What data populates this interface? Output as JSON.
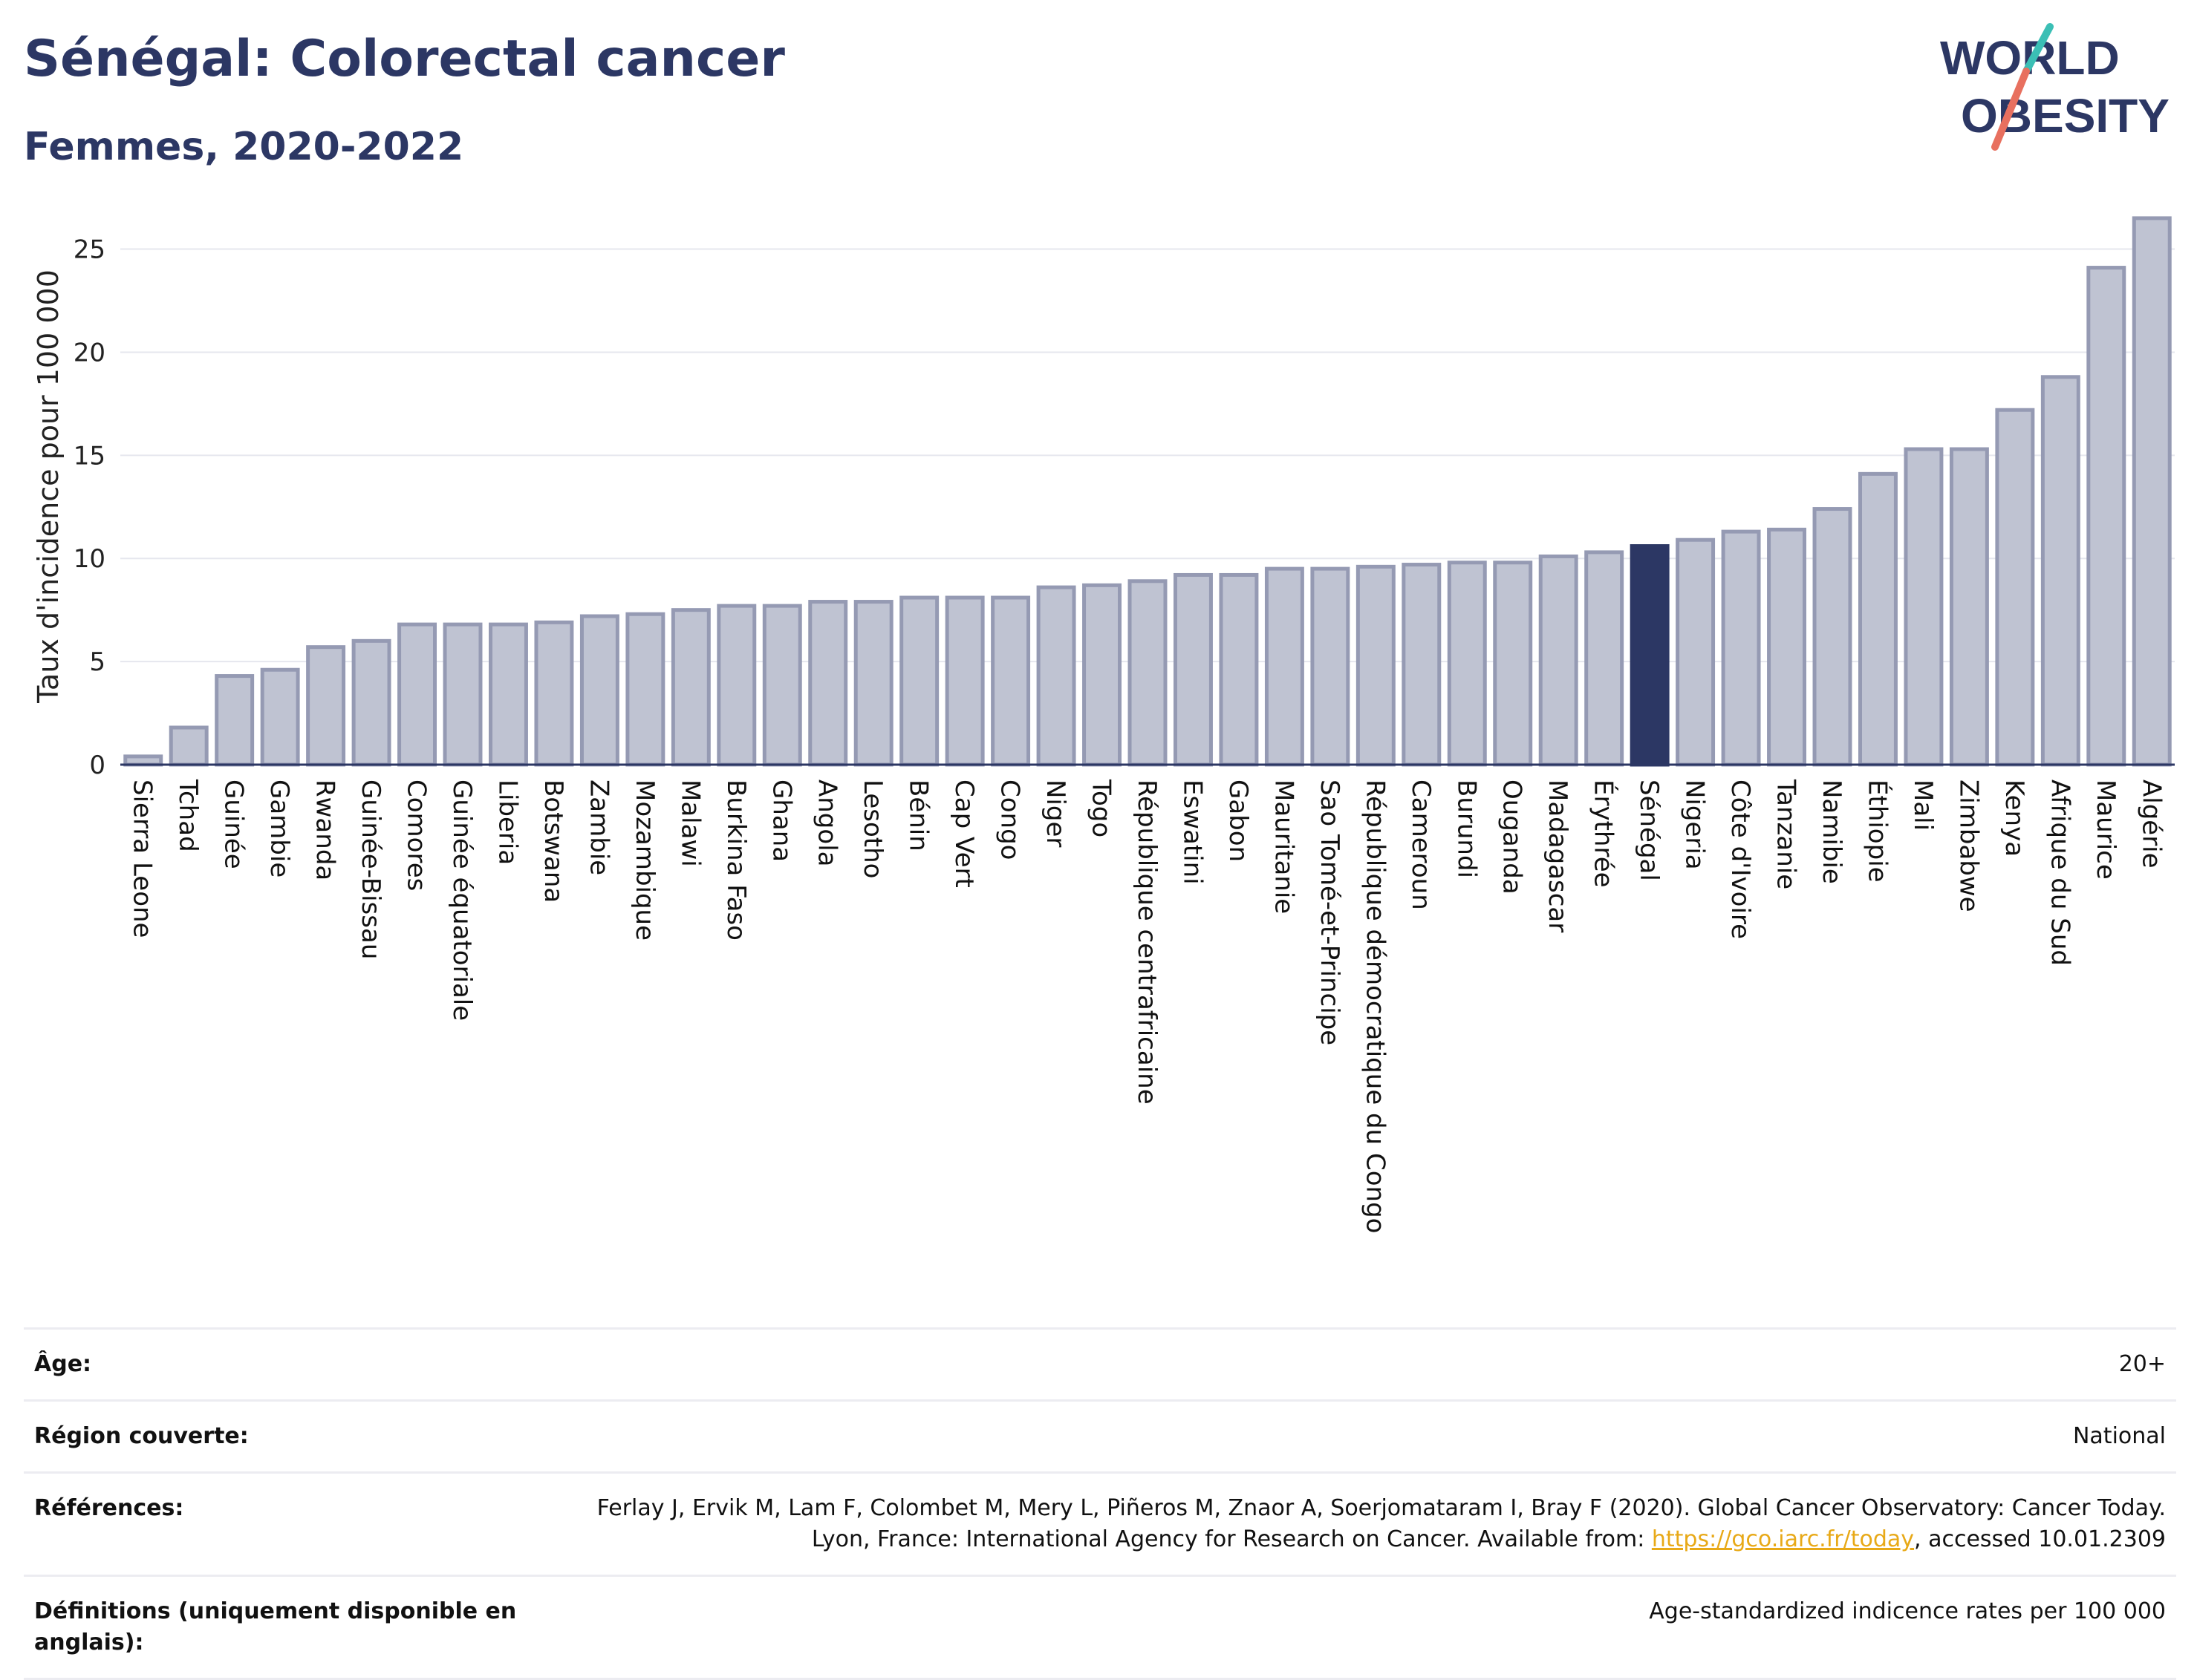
{
  "header": {
    "title": "Sénégal: Colorectal cancer",
    "subtitle": "Femmes, 2020-2022"
  },
  "logo": {
    "line1": "WORLD",
    "line2": "OBESITY"
  },
  "colors": {
    "bar": "#bfc3d2",
    "bar_border": "#959ab3",
    "highlight": "#2c3764",
    "title": "#2c3764"
  },
  "chart_data": {
    "type": "bar",
    "ylabel": "Taux d'incidence pour 100 000",
    "ylim": [
      0,
      27
    ],
    "yticks": [
      0,
      5,
      10,
      15,
      20,
      25
    ],
    "highlight": "Sénégal",
    "categories": [
      "Sierra Leone",
      "Tchad",
      "Guinée",
      "Gambie",
      "Rwanda",
      "Guinée-Bissau",
      "Comores",
      "Guinée équatoriale",
      "Liberia",
      "Botswana",
      "Zambie",
      "Mozambique",
      "Malawi",
      "Burkina Faso",
      "Ghana",
      "Angola",
      "Lesotho",
      "Bénin",
      "Cap Vert",
      "Congo",
      "Niger",
      "Togo",
      "République centrafricaine",
      "Eswatini",
      "Gabon",
      "Mauritanie",
      "Sao Tomé-et-Principe",
      "République démocratique du Congo",
      "Cameroun",
      "Burundi",
      "Ouganda",
      "Madagascar",
      "Érythrée",
      "Sénégal",
      "Nigeria",
      "Côte d'Ivoire",
      "Tanzanie",
      "Namibie",
      "Éthiopie",
      "Mali",
      "Zimbabwe",
      "Kenya",
      "Afrique du Sud",
      "Maurice",
      "Algérie"
    ],
    "values": [
      0.4,
      1.8,
      4.3,
      4.6,
      5.7,
      6.0,
      6.8,
      6.8,
      6.8,
      6.9,
      7.2,
      7.3,
      7.5,
      7.7,
      7.7,
      7.9,
      7.9,
      8.1,
      8.1,
      8.1,
      8.6,
      8.7,
      8.9,
      9.2,
      9.2,
      9.5,
      9.5,
      9.6,
      9.7,
      9.8,
      9.8,
      10.1,
      10.3,
      10.6,
      10.9,
      11.3,
      11.4,
      12.4,
      14.1,
      15.3,
      15.3,
      17.2,
      18.8,
      24.1,
      26.5
    ]
  },
  "info": {
    "age_label": "Âge:",
    "age_value": "20+",
    "region_label": "Région couverte:",
    "region_value": "National",
    "ref_label": "Références:",
    "ref_text": "Ferlay J, Ervik M, Lam F, Colombet M, Mery L, Piñeros M, Znaor A, Soerjomataram I, Bray F (2020). Global Cancer Observatory: Cancer Today. Lyon, France: International Agency for Research on Cancer. Available from: ",
    "ref_link": "https://gco.iarc.fr/today",
    "ref_suffix": ", accessed 10.01.2309",
    "def_label": "Définitions (uniquement disponible en anglais):",
    "def_value": "Age-standardized indicence rates per 100 000"
  }
}
